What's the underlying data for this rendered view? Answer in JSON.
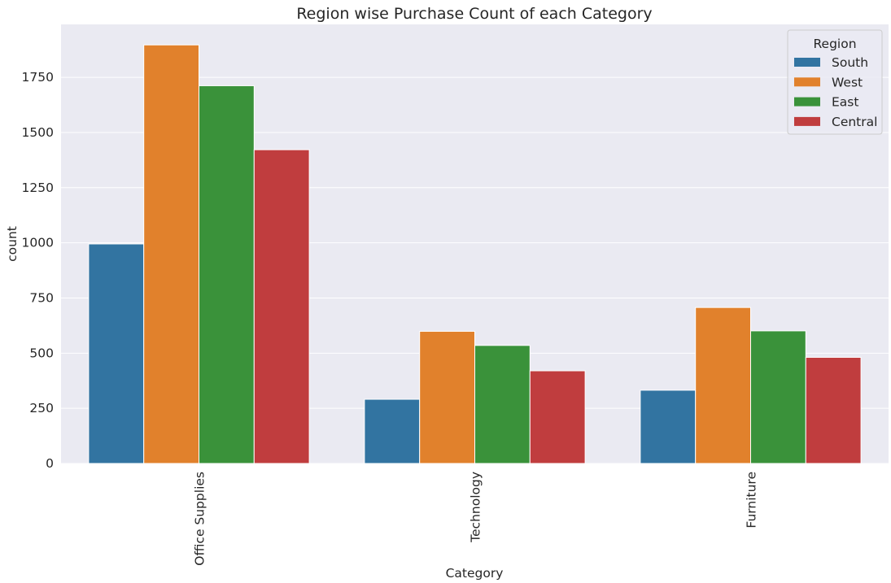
{
  "chart_data": {
    "type": "bar",
    "title": "Region wise Purchase Count of each Category",
    "xlabel": "Category",
    "ylabel": "count",
    "categories": [
      "Office Supplies",
      "Technology",
      "Furniture"
    ],
    "series": [
      {
        "name": "South",
        "values": [
          995,
          291,
          332
        ],
        "color": "#3274a1"
      },
      {
        "name": "West",
        "values": [
          1897,
          599,
          707
        ],
        "color": "#e1812c"
      },
      {
        "name": "East",
        "values": [
          1712,
          535,
          601
        ],
        "color": "#3a923a"
      },
      {
        "name": "Central",
        "values": [
          1422,
          420,
          481
        ],
        "color": "#c03d3e"
      }
    ],
    "ylim": [
      0,
      1990
    ],
    "yticks": [
      0,
      250,
      500,
      750,
      1000,
      1250,
      1500,
      1750
    ],
    "ytick_labels": [
      "0",
      "250",
      "500",
      "750",
      "1000",
      "1250",
      "1500",
      "1750"
    ],
    "grid": true,
    "legend": {
      "title": "Region",
      "position": "top-right"
    },
    "style": {
      "background": "#eaeaf2",
      "grid_color": "#ffffff"
    }
  }
}
